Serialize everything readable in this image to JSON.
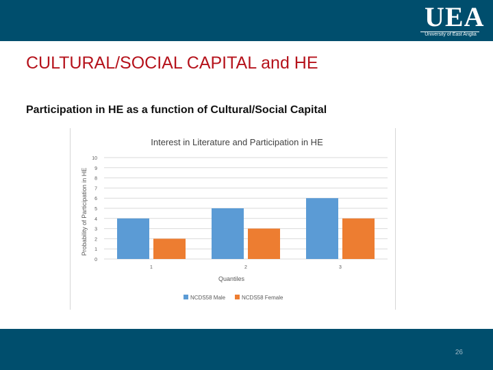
{
  "header": {
    "logo_text": "UEA",
    "logo_subtitle": "University of East Anglia"
  },
  "slide": {
    "title": "CULTURAL/SOCIAL CAPITAL and HE",
    "subtitle": "Participation in HE as a function of Cultural/Social Capital",
    "page_number": "26"
  },
  "colors": {
    "bar_background": "#004e6d",
    "title_red": "#b5121b",
    "series_male": "#5b9bd5",
    "series_female": "#ed7d31"
  },
  "chart_data": {
    "type": "bar",
    "title": "Interest in Literature and Participation in HE",
    "xlabel": "Quantiles",
    "ylabel": "Probability of Participation in HE",
    "categories": [
      "1",
      "2",
      "3"
    ],
    "series": [
      {
        "name": "NCDS58 Male",
        "values": [
          4,
          5,
          6
        ]
      },
      {
        "name": "NCDS58 Female",
        "values": [
          2,
          3,
          4
        ]
      }
    ],
    "ylim": [
      0,
      10
    ],
    "yticks": [
      0,
      1,
      2,
      3,
      4,
      5,
      6,
      7,
      8,
      9,
      10
    ],
    "grid": true,
    "legend": "bottom"
  }
}
